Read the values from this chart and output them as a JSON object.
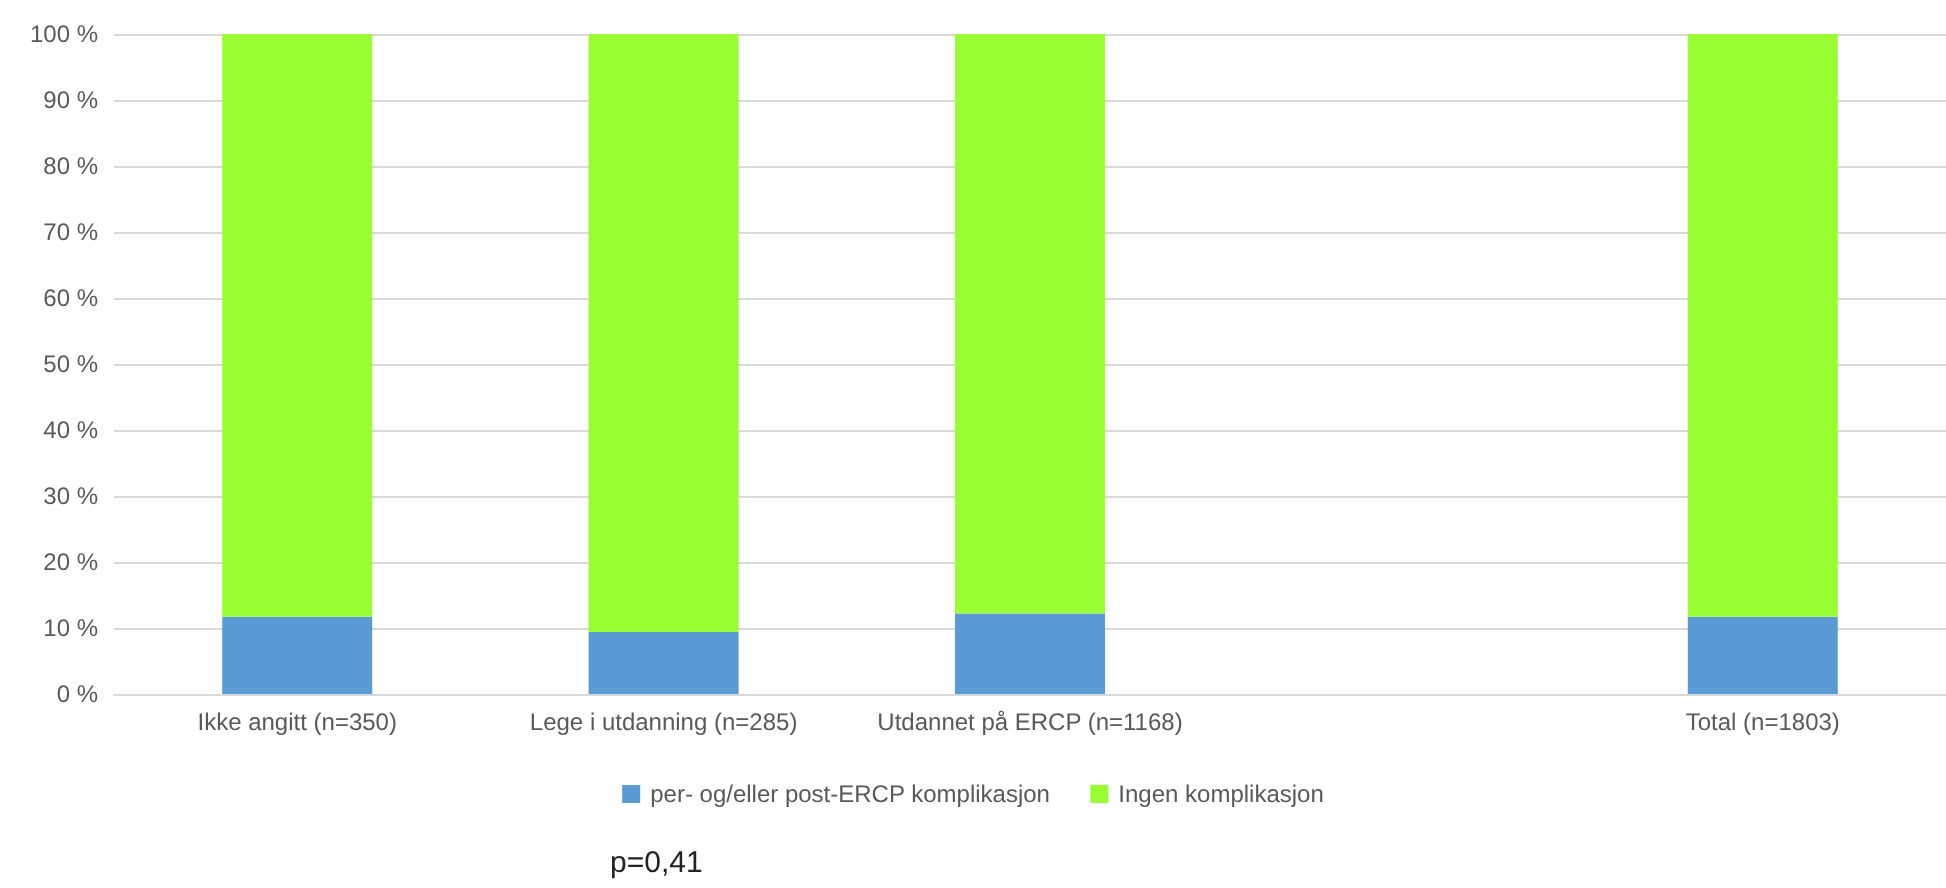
{
  "chart_data": {
    "type": "bar",
    "stacked": true,
    "categories": [
      "Ikke angitt (n=350)",
      "Lege i utdanning (n=285)",
      "Utdannet på ERCP (n=1168)",
      null,
      "Total (n=1803)"
    ],
    "series": [
      {
        "name": "per- og/eller post-ERCP komplikasjon",
        "color": "#5b9bd5",
        "values": [
          11.7,
          9.4,
          12.2,
          null,
          11.7
        ]
      },
      {
        "name": "Ingen komplikasjon",
        "color": "#99ff33",
        "values": [
          88.3,
          90.6,
          87.8,
          null,
          88.3
        ]
      }
    ],
    "ylim": [
      0,
      100
    ],
    "yticks": [
      {
        "value": 0,
        "label": "0 %"
      },
      {
        "value": 10,
        "label": "10 %"
      },
      {
        "value": 20,
        "label": "20 %"
      },
      {
        "value": 30,
        "label": "30 %"
      },
      {
        "value": 40,
        "label": "40 %"
      },
      {
        "value": 50,
        "label": "50 %"
      },
      {
        "value": 60,
        "label": "60 %"
      },
      {
        "value": 70,
        "label": "70 %"
      },
      {
        "value": 80,
        "label": "80 %"
      },
      {
        "value": 90,
        "label": "90 %"
      },
      {
        "value": 100,
        "label": "100 %"
      }
    ],
    "grid": "y",
    "legend": "bottom",
    "annotations": [
      "p=0,41"
    ]
  }
}
